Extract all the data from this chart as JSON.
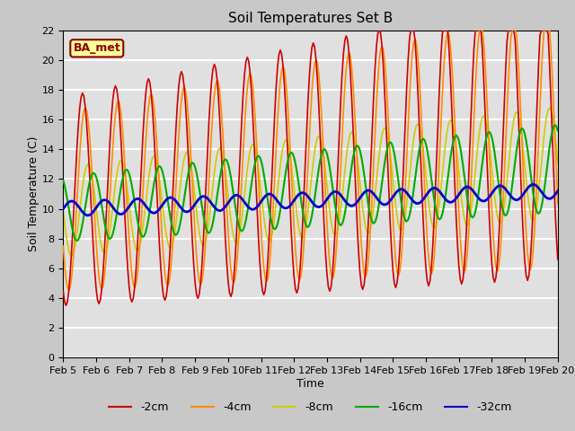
{
  "title": "Soil Temperatures Set B",
  "xlabel": "Time",
  "ylabel": "Soil Temperature (C)",
  "ylim": [
    0,
    22
  ],
  "xlim": [
    0,
    360
  ],
  "fig_facecolor": "#c8c8c8",
  "ax_facecolor": "#e0e0e0",
  "legend_label": "BA_met",
  "colors": {
    "2cm": "#cc0000",
    "4cm": "#ff8c00",
    "8cm": "#cccc00",
    "16cm": "#00aa00",
    "32cm": "#0000cc"
  },
  "x_tick_labels": [
    "Feb 5",
    "Feb 6",
    "Feb 7",
    "Feb 8",
    "Feb 9",
    "Feb 10",
    "Feb 11",
    "Feb 12",
    "Feb 13",
    "Feb 14",
    "Feb 15",
    "Feb 16",
    "Feb 17",
    "Feb 18",
    "Feb 19",
    "Feb 20"
  ],
  "x_tick_positions": [
    0,
    24,
    48,
    72,
    96,
    120,
    144,
    168,
    192,
    216,
    240,
    264,
    288,
    312,
    336,
    360
  ]
}
